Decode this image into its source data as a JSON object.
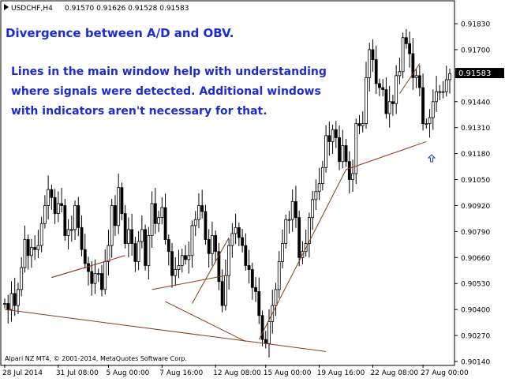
{
  "header": {
    "symbol": "USDCHF,H4",
    "ohlc": "0.91570 0.91626 0.91528 0.91583"
  },
  "annotations": {
    "title": "Divergence between A/D and OBV.",
    "body_lines": [
      "Lines in the main window help with understanding",
      "where signals were detected. Additional windows",
      "with indicators aren't necessary for that."
    ]
  },
  "copyright": "Alpari NZ MT4, © 2001-2014, MetaQuotes Software Corp.",
  "colors": {
    "candle": "#000000",
    "divergence_line": "#8b3a1a",
    "annotation_text": "#1c2bd6",
    "arrow": "#2b3bd6",
    "current_price_bg": "#000000",
    "current_price_text": "#ffffff"
  },
  "chart_data": {
    "type": "candlestick",
    "x_tick_labels": [
      "28 Jul 2014",
      "31 Jul 08:00",
      "5 Aug 00:00",
      "7 Aug 16:00",
      "12 Aug 08:00",
      "15 Aug 00:00",
      "19 Aug 16:00",
      "22 Aug 08:00",
      "27 Aug 00:00"
    ],
    "y_tick_labels": [
      "0.91830",
      "0.91700",
      "0.91440",
      "0.91310",
      "0.91180",
      "0.91050",
      "0.90920",
      "0.90790",
      "0.90660",
      "0.90530",
      "0.90400",
      "0.90270",
      "0.90140"
    ],
    "ylim": [
      0.9014,
      0.9183
    ],
    "current_price": "0.91583",
    "grid": false,
    "closes": [
      0.9043,
      0.904,
      0.9048,
      0.9042,
      0.905,
      0.9061,
      0.9075,
      0.9067,
      0.9071,
      0.907,
      0.9072,
      0.9083,
      0.9092,
      0.91,
      0.9096,
      0.9088,
      0.9093,
      0.9092,
      0.9077,
      0.908,
      0.908,
      0.9092,
      0.9081,
      0.907,
      0.9063,
      0.9059,
      0.9053,
      0.9058,
      0.9058,
      0.905,
      0.9064,
      0.9072,
      0.9092,
      0.9082,
      0.9101,
      0.9088,
      0.9073,
      0.908,
      0.9073,
      0.9064,
      0.9074,
      0.908,
      0.9062,
      0.9077,
      0.9093,
      0.9083,
      0.9086,
      0.9091,
      0.9075,
      0.9069,
      0.9057,
      0.906,
      0.9062,
      0.9067,
      0.9065,
      0.9067,
      0.9082,
      0.9085,
      0.9092,
      0.9089,
      0.9075,
      0.9068,
      0.9077,
      0.9069,
      0.9054,
      0.9042,
      0.9057,
      0.9072,
      0.9078,
      0.9081,
      0.9076,
      0.9072,
      0.9062,
      0.906,
      0.9051,
      0.9049,
      0.9037,
      0.9025,
      0.9023,
      0.9034,
      0.9042,
      0.905,
      0.9064,
      0.9073,
      0.9085,
      0.9085,
      0.9094,
      0.9086,
      0.9066,
      0.9069,
      0.9073,
      0.9086,
      0.9095,
      0.9099,
      0.9103,
      0.9111,
      0.9127,
      0.9124,
      0.913,
      0.9126,
      0.9114,
      0.9122,
      0.9114,
      0.9105,
      0.9108,
      0.9133,
      0.9132,
      0.9133,
      0.9156,
      0.917,
      0.9165,
      0.9153,
      0.9151,
      0.915,
      0.9138,
      0.9144,
      0.9143,
      0.9157,
      0.9159,
      0.9176,
      0.9173,
      0.9168,
      0.9156,
      0.9157,
      0.9151,
      0.9133,
      0.9133,
      0.9136,
      0.9144,
      0.9149,
      0.9149,
      0.9149,
      0.9155,
      0.9158
    ]
  },
  "divergence_lines": [
    {
      "from": {
        "i": 0,
        "price": 0.904
      },
      "to": {
        "i": 96,
        "price": 0.9019
      }
    },
    {
      "from": {
        "i": 14,
        "price": 0.9056
      },
      "to": {
        "i": 36,
        "price": 0.9067
      }
    },
    {
      "from": {
        "i": 14,
        "price": 0.9056
      },
      "to": {
        "i": 26,
        "price": 0.9062
      }
    },
    {
      "from": {
        "i": 44,
        "price": 0.905
      },
      "to": {
        "i": 66,
        "price": 0.9057
      }
    },
    {
      "from": {
        "i": 48,
        "price": 0.9044
      },
      "to": {
        "i": 72,
        "price": 0.9024
      }
    },
    {
      "from": {
        "i": 56,
        "price": 0.9043
      },
      "to": {
        "i": 67,
        "price": 0.9076
      }
    },
    {
      "from": {
        "i": 76,
        "price": 0.9025
      },
      "to": {
        "i": 102,
        "price": 0.911
      }
    },
    {
      "from": {
        "i": 102,
        "price": 0.911
      },
      "to": {
        "i": 126,
        "price": 0.9124
      }
    },
    {
      "from": {
        "i": 118,
        "price": 0.9148
      },
      "to": {
        "i": 124,
        "price": 0.9163
      }
    }
  ]
}
